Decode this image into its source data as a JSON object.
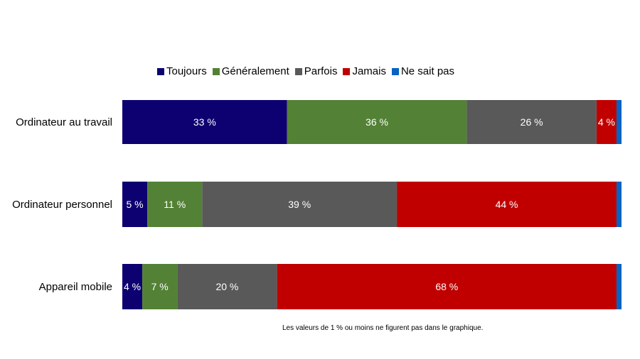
{
  "chart_data": {
    "type": "bar",
    "orientation": "horizontal",
    "stacked": true,
    "categories": [
      "Ordinateur au travail",
      "Ordinateur personnel",
      "Appareil mobile"
    ],
    "series": [
      {
        "name": "Toujours",
        "color": "#0d0070",
        "values": [
          33,
          5,
          4
        ]
      },
      {
        "name": "Généralement",
        "color": "#538135",
        "values": [
          36,
          11,
          7
        ]
      },
      {
        "name": "Parfois",
        "color": "#595959",
        "values": [
          26,
          39,
          20
        ]
      },
      {
        "name": "Jamais",
        "color": "#c00000",
        "values": [
          4,
          44,
          68
        ]
      },
      {
        "name": "Ne sait pas",
        "color": "#0563c1",
        "values": [
          1,
          1,
          1
        ]
      }
    ],
    "label_suffix": " %",
    "label_threshold": 1,
    "xlim": [
      0,
      100
    ],
    "legend_position": "top",
    "grid": false,
    "note": "Les valeurs de 1 % ou moins ne figurent pas dans le graphique."
  }
}
